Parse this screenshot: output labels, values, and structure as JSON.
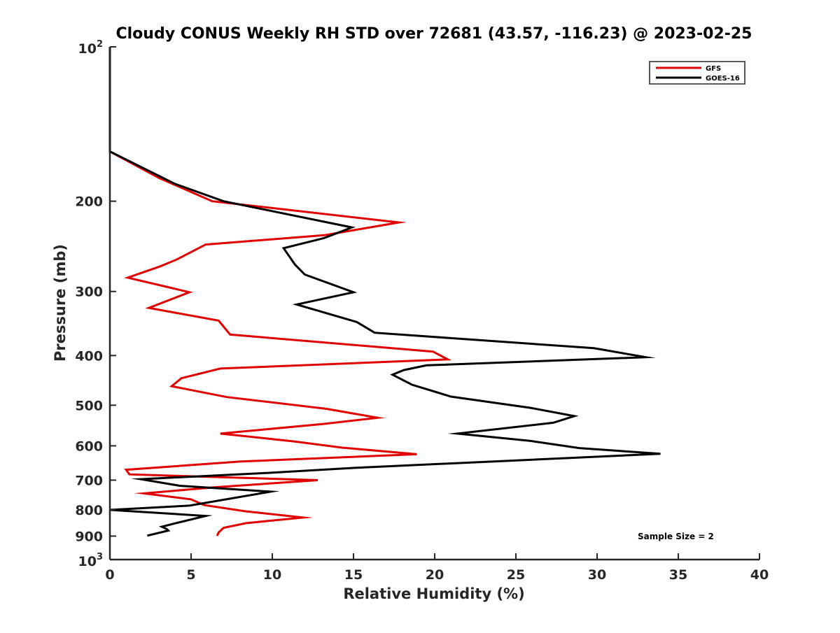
{
  "chart_data": {
    "type": "line",
    "title": "Cloudy CONUS Weekly RH STD over 72681 (43.57, -116.23) @ 2023-02-25",
    "xlabel": "Relative Humidity (%)",
    "ylabel": "Pressure (mb)",
    "xlim": [
      0,
      40
    ],
    "ylim": [
      100,
      1000
    ],
    "y_scale": "log",
    "y_reversed": true,
    "x_ticks": [
      0,
      5,
      10,
      15,
      20,
      25,
      30,
      35,
      40
    ],
    "x_tick_labels": [
      "0",
      "5",
      "10",
      "15",
      "20",
      "25",
      "30",
      "35",
      "40"
    ],
    "y_ticks": [
      200,
      300,
      400,
      500,
      600,
      700,
      800,
      900
    ],
    "y_tick_labels": [
      "200",
      "300",
      "400",
      "500",
      "600",
      "700",
      "800",
      "900"
    ],
    "y_end_labels": {
      "top_base": "10",
      "top_exp": "2",
      "bottom_base": "10",
      "bottom_exp": "3"
    },
    "grid": false,
    "legend_position": "top-right",
    "annotation": "Sample Size = 2",
    "series": [
      {
        "name": "GFS",
        "color": "#e00000",
        "points": [
          [
            0,
            100
          ],
          [
            0,
            160
          ],
          [
            3,
            180
          ],
          [
            6.3,
            200
          ],
          [
            17.8,
            220
          ],
          [
            13.2,
            233
          ],
          [
            5.9,
            243
          ],
          [
            4.1,
            260
          ],
          [
            3.1,
            268
          ],
          [
            1.1,
            282
          ],
          [
            4.9,
            301
          ],
          [
            2.4,
            323
          ],
          [
            6.7,
            342
          ],
          [
            7.4,
            364
          ],
          [
            19.9,
            393
          ],
          [
            20.8,
            407
          ],
          [
            6.8,
            424
          ],
          [
            4.4,
            443
          ],
          [
            3.8,
            459
          ],
          [
            7.2,
            482
          ],
          [
            13.3,
            508
          ],
          [
            16.5,
            529
          ],
          [
            13.1,
            544
          ],
          [
            6.8,
            568
          ],
          [
            11.3,
            588
          ],
          [
            14.3,
            605
          ],
          [
            18.9,
            623
          ],
          [
            8.0,
            644
          ],
          [
            1.0,
            668
          ],
          [
            1.2,
            682
          ],
          [
            12.8,
            700
          ],
          [
            6.4,
            723
          ],
          [
            2.1,
            743
          ],
          [
            5.0,
            763
          ],
          [
            5.8,
            783
          ],
          [
            8.3,
            805
          ],
          [
            11.9,
            828
          ],
          [
            8.4,
            849
          ],
          [
            7.0,
            867
          ],
          [
            6.7,
            885
          ],
          [
            6.6,
            899
          ]
        ]
      },
      {
        "name": "GOES-16",
        "color": "#000000",
        "points": [
          [
            0,
            100
          ],
          [
            0,
            160
          ],
          [
            4,
            185
          ],
          [
            7,
            200
          ],
          [
            14.9,
            225
          ],
          [
            13.2,
            236
          ],
          [
            10.7,
            247
          ],
          [
            11.4,
            266
          ],
          [
            12.0,
            278
          ],
          [
            15.0,
            301
          ],
          [
            11.5,
            318
          ],
          [
            15.2,
            344
          ],
          [
            16.3,
            361
          ],
          [
            29.8,
            387
          ],
          [
            33.0,
            403
          ],
          [
            19.5,
            418
          ],
          [
            18.1,
            427
          ],
          [
            17.4,
            436
          ],
          [
            18.6,
            456
          ],
          [
            21.0,
            481
          ],
          [
            25.9,
            506
          ],
          [
            28.6,
            525
          ],
          [
            27.3,
            541
          ],
          [
            21.4,
            568
          ],
          [
            25.9,
            587
          ],
          [
            28.9,
            606
          ],
          [
            33.9,
            622
          ],
          [
            15.2,
            662
          ],
          [
            10.0,
            677
          ],
          [
            1.9,
            697
          ],
          [
            4.3,
            718
          ],
          [
            9.9,
            737
          ],
          [
            4.9,
            785
          ],
          [
            0,
            800
          ],
          [
            5.9,
            822
          ],
          [
            4.0,
            850
          ],
          [
            3.2,
            863
          ],
          [
            3.5,
            872
          ],
          [
            3.6,
            878
          ],
          [
            2.3,
            898
          ]
        ]
      }
    ]
  }
}
